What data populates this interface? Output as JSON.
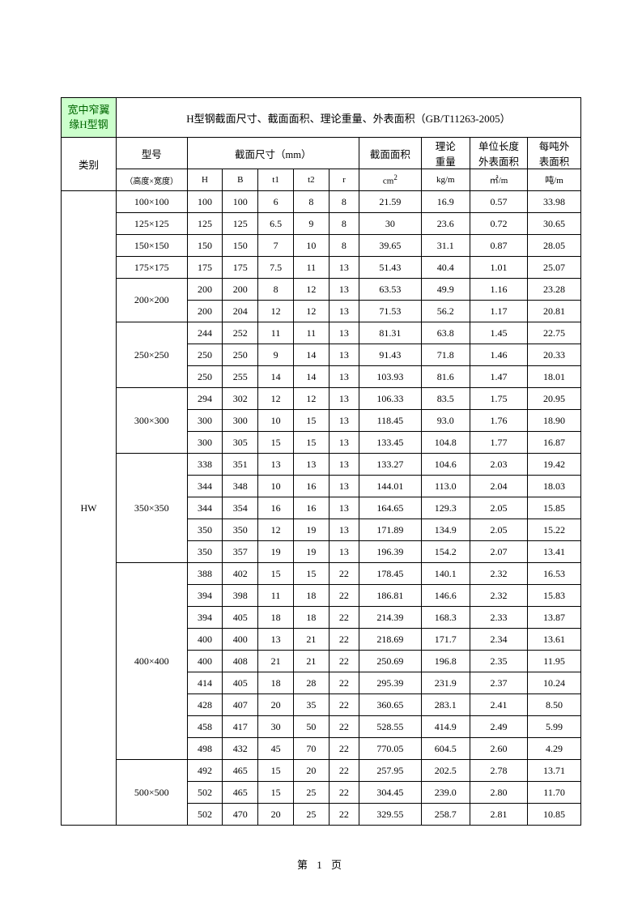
{
  "corner": "宽中窄翼\n缘H型钢",
  "title": "H型钢截面尺寸、截面面积、理论重量、外表面积（GB/T11263-2005）",
  "category_header": "类别",
  "model_header": "型号",
  "dim_header": "截面尺寸（mm）",
  "area_header": "截面面积",
  "weight_header": "理论\n重量",
  "unit_surface_header": "单位长度\n外表面积",
  "per_ton_header": "每吨外\n表面积",
  "model_sub": "（高度×宽度）",
  "H": "H",
  "B": "B",
  "t1": "t1",
  "t2": "t2",
  "r": "r",
  "cm2": "cm",
  "kgm": "kg/m",
  "m2m": "㎡/m",
  "dunm": "吨/m",
  "category_value": "HW",
  "groups": [
    {
      "model": "100×100",
      "rows": [
        [
          "100",
          "100",
          "6",
          "8",
          "8",
          "21.59",
          "16.9",
          "0.57",
          "33.98"
        ]
      ]
    },
    {
      "model": "125×125",
      "rows": [
        [
          "125",
          "125",
          "6.5",
          "9",
          "8",
          "30",
          "23.6",
          "0.72",
          "30.65"
        ]
      ]
    },
    {
      "model": "150×150",
      "rows": [
        [
          "150",
          "150",
          "7",
          "10",
          "8",
          "39.65",
          "31.1",
          "0.87",
          "28.05"
        ]
      ]
    },
    {
      "model": "175×175",
      "rows": [
        [
          "175",
          "175",
          "7.5",
          "11",
          "13",
          "51.43",
          "40.4",
          "1.01",
          "25.07"
        ]
      ]
    },
    {
      "model": "200×200",
      "rows": [
        [
          "200",
          "200",
          "8",
          "12",
          "13",
          "63.53",
          "49.9",
          "1.16",
          "23.28"
        ],
        [
          "200",
          "204",
          "12",
          "12",
          "13",
          "71.53",
          "56.2",
          "1.17",
          "20.81"
        ]
      ]
    },
    {
      "model": "250×250",
      "rows": [
        [
          "244",
          "252",
          "11",
          "11",
          "13",
          "81.31",
          "63.8",
          "1.45",
          "22.75"
        ],
        [
          "250",
          "250",
          "9",
          "14",
          "13",
          "91.43",
          "71.8",
          "1.46",
          "20.33"
        ],
        [
          "250",
          "255",
          "14",
          "14",
          "13",
          "103.93",
          "81.6",
          "1.47",
          "18.01"
        ]
      ]
    },
    {
      "model": "300×300",
      "rows": [
        [
          "294",
          "302",
          "12",
          "12",
          "13",
          "106.33",
          "83.5",
          "1.75",
          "20.95"
        ],
        [
          "300",
          "300",
          "10",
          "15",
          "13",
          "118.45",
          "93.0",
          "1.76",
          "18.90"
        ],
        [
          "300",
          "305",
          "15",
          "15",
          "13",
          "133.45",
          "104.8",
          "1.77",
          "16.87"
        ]
      ]
    },
    {
      "model": "350×350",
      "rows": [
        [
          "338",
          "351",
          "13",
          "13",
          "13",
          "133.27",
          "104.6",
          "2.03",
          "19.42"
        ],
        [
          "344",
          "348",
          "10",
          "16",
          "13",
          "144.01",
          "113.0",
          "2.04",
          "18.03"
        ],
        [
          "344",
          "354",
          "16",
          "16",
          "13",
          "164.65",
          "129.3",
          "2.05",
          "15.85"
        ],
        [
          "350",
          "350",
          "12",
          "19",
          "13",
          "171.89",
          "134.9",
          "2.05",
          "15.22"
        ],
        [
          "350",
          "357",
          "19",
          "19",
          "13",
          "196.39",
          "154.2",
          "2.07",
          "13.41"
        ]
      ]
    },
    {
      "model": "400×400",
      "rows": [
        [
          "388",
          "402",
          "15",
          "15",
          "22",
          "178.45",
          "140.1",
          "2.32",
          "16.53"
        ],
        [
          "394",
          "398",
          "11",
          "18",
          "22",
          "186.81",
          "146.6",
          "2.32",
          "15.83"
        ],
        [
          "394",
          "405",
          "18",
          "18",
          "22",
          "214.39",
          "168.3",
          "2.33",
          "13.87"
        ],
        [
          "400",
          "400",
          "13",
          "21",
          "22",
          "218.69",
          "171.7",
          "2.34",
          "13.61"
        ],
        [
          "400",
          "408",
          "21",
          "21",
          "22",
          "250.69",
          "196.8",
          "2.35",
          "11.95"
        ],
        [
          "414",
          "405",
          "18",
          "28",
          "22",
          "295.39",
          "231.9",
          "2.37",
          "10.24"
        ],
        [
          "428",
          "407",
          "20",
          "35",
          "22",
          "360.65",
          "283.1",
          "2.41",
          "8.50"
        ],
        [
          "458",
          "417",
          "30",
          "50",
          "22",
          "528.55",
          "414.9",
          "2.49",
          "5.99"
        ],
        [
          "498",
          "432",
          "45",
          "70",
          "22",
          "770.05",
          "604.5",
          "2.60",
          "4.29"
        ]
      ]
    },
    {
      "model": "500×500",
      "rows": [
        [
          "492",
          "465",
          "15",
          "20",
          "22",
          "257.95",
          "202.5",
          "2.78",
          "13.71"
        ],
        [
          "502",
          "465",
          "15",
          "25",
          "22",
          "304.45",
          "239.0",
          "2.80",
          "11.70"
        ],
        [
          "502",
          "470",
          "20",
          "25",
          "22",
          "329.55",
          "258.7",
          "2.81",
          "10.85"
        ]
      ]
    }
  ],
  "footer": "第 1 页",
  "col_widths": [
    "62",
    "80",
    "40",
    "40",
    "40",
    "40",
    "34",
    "70",
    "55",
    "65",
    "60"
  ]
}
